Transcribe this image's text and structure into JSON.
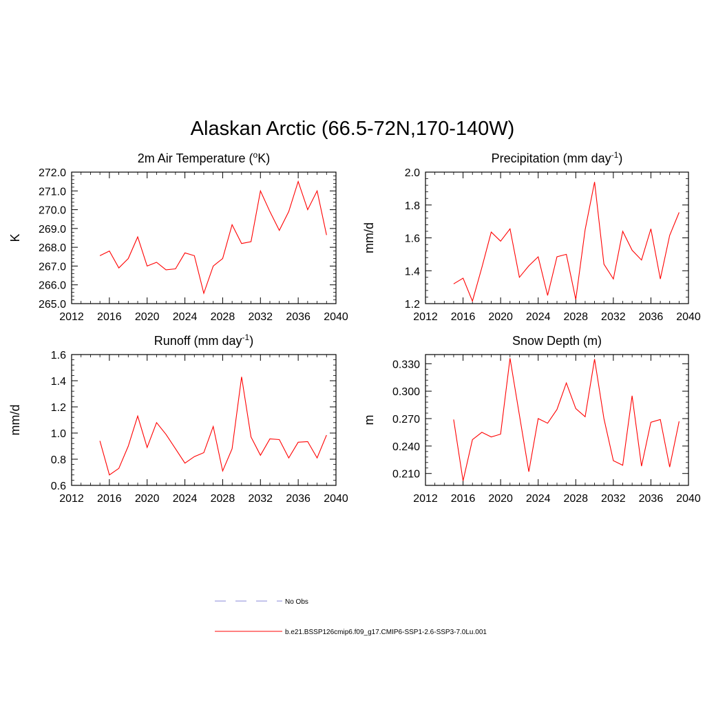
{
  "title": "Alaskan Arctic (66.5-72N,170-140W)",
  "colors": {
    "model": "#ff0000",
    "obs": "#a0a0e0",
    "axis": "#000000"
  },
  "legend": {
    "obs_label": "No Obs",
    "model_label": "b.e21.BSSP126cmip6.f09_g17.CMIP6-SSP1-2.6-SSP3-7.0Lu.001"
  },
  "chart_data": [
    {
      "type": "line",
      "title": "2m Air Temperature (",
      "title_sup": "o",
      "title_tail": "K)",
      "ylabel": "K",
      "xlim": [
        2012,
        2040
      ],
      "ylim": [
        265.0,
        272.0
      ],
      "xticks": [
        2012,
        2016,
        2020,
        2024,
        2028,
        2032,
        2036,
        2040
      ],
      "yticks": [
        "265.0",
        "266.0",
        "267.0",
        "268.0",
        "269.0",
        "270.0",
        "271.0",
        "272.0"
      ],
      "x": [
        2015,
        2016,
        2017,
        2018,
        2019,
        2020,
        2021,
        2022,
        2023,
        2024,
        2025,
        2026,
        2027,
        2028,
        2029,
        2030,
        2031,
        2032,
        2033,
        2034,
        2035,
        2036,
        2037,
        2038,
        2039
      ],
      "series": [
        {
          "values": [
            267.55,
            267.8,
            266.9,
            267.4,
            268.55,
            267.0,
            267.2,
            266.8,
            266.85,
            267.7,
            267.55,
            265.55,
            267.0,
            267.4,
            269.2,
            268.2,
            268.3,
            271.0,
            269.9,
            268.9,
            269.9,
            271.5,
            270.0,
            271.0,
            268.65
          ]
        }
      ]
    },
    {
      "type": "line",
      "title": "Precipitation (mm day",
      "title_sup": "-1",
      "title_tail": ")",
      "ylabel": "mm/d",
      "xlim": [
        2012,
        2040
      ],
      "ylim": [
        1.2,
        2.0
      ],
      "xticks": [
        2012,
        2016,
        2020,
        2024,
        2028,
        2032,
        2036,
        2040
      ],
      "yticks": [
        "1.2",
        "1.4",
        "1.6",
        "1.8",
        "2.0"
      ],
      "x": [
        2015,
        2016,
        2017,
        2018,
        2019,
        2020,
        2021,
        2022,
        2023,
        2024,
        2025,
        2026,
        2027,
        2028,
        2029,
        2030,
        2031,
        2032,
        2033,
        2034,
        2035,
        2036,
        2037,
        2038,
        2039
      ],
      "series": [
        {
          "values": [
            1.32,
            1.355,
            1.215,
            1.42,
            1.635,
            1.58,
            1.655,
            1.36,
            1.43,
            1.485,
            1.25,
            1.485,
            1.5,
            1.225,
            1.65,
            1.94,
            1.44,
            1.35,
            1.64,
            1.525,
            1.465,
            1.655,
            1.35,
            1.615,
            1.755
          ]
        }
      ]
    },
    {
      "type": "line",
      "title": "Runoff (mm day",
      "title_sup": "-1",
      "title_tail": ")",
      "ylabel": "mm/d",
      "xlim": [
        2012,
        2040
      ],
      "ylim": [
        0.6,
        1.6
      ],
      "xticks": [
        2012,
        2016,
        2020,
        2024,
        2028,
        2032,
        2036,
        2040
      ],
      "yticks": [
        "0.6",
        "0.8",
        "1.0",
        "1.2",
        "1.4",
        "1.6"
      ],
      "x": [
        2015,
        2016,
        2017,
        2018,
        2019,
        2020,
        2021,
        2022,
        2023,
        2024,
        2025,
        2026,
        2027,
        2028,
        2029,
        2030,
        2031,
        2032,
        2033,
        2034,
        2035,
        2036,
        2037,
        2038,
        2039
      ],
      "series": [
        {
          "values": [
            0.94,
            0.68,
            0.73,
            0.9,
            1.13,
            0.89,
            1.08,
            0.99,
            0.88,
            0.77,
            0.82,
            0.85,
            1.05,
            0.71,
            0.88,
            1.43,
            0.97,
            0.83,
            0.955,
            0.95,
            0.81,
            0.93,
            0.935,
            0.81,
            0.985
          ]
        }
      ]
    },
    {
      "type": "line",
      "title": "Snow Depth (m)",
      "title_sup": "",
      "title_tail": "",
      "ylabel": "m",
      "xlim": [
        2012,
        2040
      ],
      "ylim": [
        0.197,
        0.34
      ],
      "xticks": [
        2012,
        2016,
        2020,
        2024,
        2028,
        2032,
        2036,
        2040
      ],
      "yticks": [
        "0.210",
        "0.240",
        "0.270",
        "0.300",
        "0.330"
      ],
      "ytick_values": [
        0.21,
        0.24,
        0.27,
        0.3,
        0.33
      ],
      "x": [
        2015,
        2016,
        2017,
        2018,
        2019,
        2020,
        2021,
        2022,
        2023,
        2024,
        2025,
        2026,
        2027,
        2028,
        2029,
        2030,
        2031,
        2032,
        2033,
        2034,
        2035,
        2036,
        2037,
        2038,
        2039
      ],
      "series": [
        {
          "values": [
            0.269,
            0.202,
            0.247,
            0.255,
            0.25,
            0.253,
            0.336,
            0.274,
            0.212,
            0.27,
            0.265,
            0.28,
            0.309,
            0.281,
            0.272,
            0.335,
            0.27,
            0.224,
            0.219,
            0.295,
            0.218,
            0.266,
            0.269,
            0.217,
            0.267
          ]
        }
      ]
    }
  ]
}
